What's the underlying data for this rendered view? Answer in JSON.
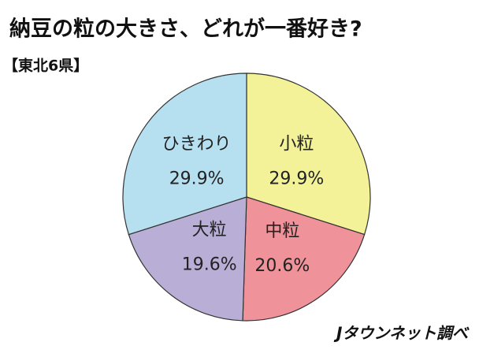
{
  "chart_data": {
    "type": "pie",
    "title": "納豆の粒の大きさ、どれが一番好き?",
    "subtitle": "【東北6県】",
    "source": "Jタウンネット調べ",
    "categories": [
      "小粒",
      "中粒",
      "大粒",
      "ひきわり"
    ],
    "values": [
      29.9,
      20.6,
      19.6,
      29.9
    ],
    "value_labels": [
      "29.9%",
      "20.6%",
      "19.6%",
      "29.9%"
    ],
    "colors": [
      "#f3f298",
      "#ef9299",
      "#b9aed6",
      "#b6dff0"
    ]
  }
}
